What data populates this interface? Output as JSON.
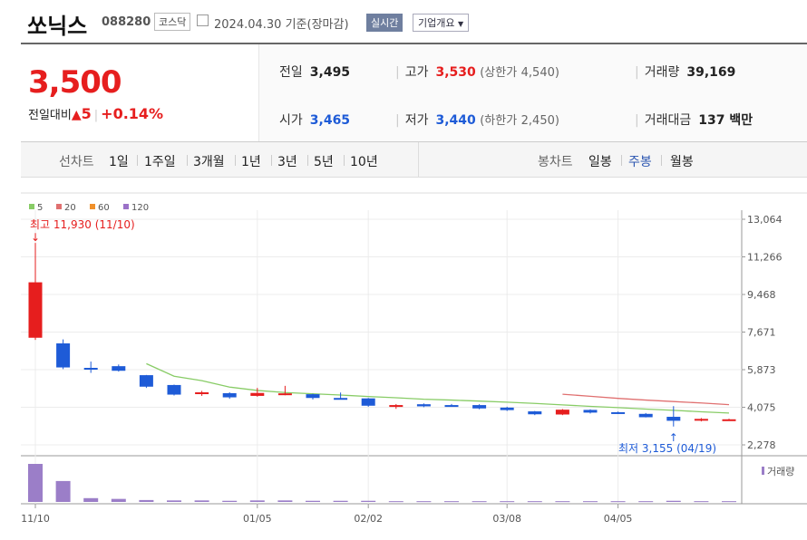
{
  "header": {
    "name": "쏘닉스",
    "code": "088280",
    "market": "코스닥",
    "date": "2024.04.30",
    "basis": "기준(장마감)",
    "live_label": "실시간",
    "info_label": "기업개요"
  },
  "quote": {
    "price": "3,500",
    "change_label": "전일대비",
    "change": "5",
    "change_pct": "+0.14%",
    "prev_close_label": "전일",
    "prev_close": "3,495",
    "high_label": "고가",
    "high": "3,530",
    "upper_limit_label": "(상한가",
    "upper_limit": "4,540)",
    "volume_label": "거래량",
    "volume": "39,169",
    "open_label": "시가",
    "open": "3,465",
    "low_label": "저가",
    "low": "3,440",
    "lower_limit_label": "(하한가",
    "lower_limit": "2,450)",
    "trade_value_label": "거래대금",
    "trade_value": "137 백만"
  },
  "period_bar": {
    "line_label": "선차트",
    "periods": [
      "1일",
      "1주일",
      "3개월",
      "1년",
      "3년",
      "5년",
      "10년"
    ],
    "candle_label": "봉차트",
    "candles": [
      "일봉",
      "주봉",
      "월봉"
    ],
    "active_candle": "주봉"
  },
  "colors": {
    "up": "#e61e1e",
    "down": "#1e5bd7",
    "ma5": "#88cc66",
    "ma20": "#e07070",
    "ma60": "#f0902a",
    "ma120": "#9b72c8",
    "volume": "#9b7ec8"
  },
  "chart_data": {
    "type": "candlestick",
    "interval": "weekly",
    "legend": [
      "5",
      "20",
      "60",
      "120"
    ],
    "yticks": [
      "13,064",
      "11,266",
      "9,468",
      "7,671",
      "5,873",
      "4,075",
      "2,278"
    ],
    "yticks_values": [
      13064,
      11266,
      9468,
      7671,
      5873,
      4075,
      2278
    ],
    "ylim": [
      2278,
      13064
    ],
    "xticks": [
      {
        "label": "11/10",
        "index": 0
      },
      {
        "label": "01/05",
        "index": 8
      },
      {
        "label": "02/02",
        "index": 12
      },
      {
        "label": "03/08",
        "index": 17
      },
      {
        "label": "04/05",
        "index": 21
      }
    ],
    "annotations": {
      "high": {
        "label": "최고 11,930 (11/10)",
        "index": 0,
        "value": 11930
      },
      "low": {
        "label": "최저 3,155 (04/19)",
        "index": 23,
        "value": 3155
      }
    },
    "volume_label": "거래량",
    "candles": [
      {
        "o": 7400,
        "h": 11930,
        "l": 7300,
        "c": 10050
      },
      {
        "o": 7130,
        "h": 7320,
        "l": 5900,
        "c": 5980
      },
      {
        "o": 5960,
        "h": 6260,
        "l": 5720,
        "c": 5920
      },
      {
        "o": 6040,
        "h": 6120,
        "l": 5780,
        "c": 5820
      },
      {
        "o": 5610,
        "h": 5620,
        "l": 5000,
        "c": 5060
      },
      {
        "o": 5140,
        "h": 5160,
        "l": 4640,
        "c": 4680
      },
      {
        "o": 4730,
        "h": 4860,
        "l": 4620,
        "c": 4790
      },
      {
        "o": 4750,
        "h": 4790,
        "l": 4480,
        "c": 4550
      },
      {
        "o": 4620,
        "h": 5000,
        "l": 4580,
        "c": 4760
      },
      {
        "o": 4720,
        "h": 5100,
        "l": 4650,
        "c": 4740
      },
      {
        "o": 4700,
        "h": 4720,
        "l": 4450,
        "c": 4520
      },
      {
        "o": 4520,
        "h": 4780,
        "l": 4450,
        "c": 4460
      },
      {
        "o": 4500,
        "h": 4520,
        "l": 4100,
        "c": 4150
      },
      {
        "o": 4100,
        "h": 4230,
        "l": 4000,
        "c": 4180
      },
      {
        "o": 4220,
        "h": 4260,
        "l": 4080,
        "c": 4120
      },
      {
        "o": 4180,
        "h": 4230,
        "l": 4110,
        "c": 4150
      },
      {
        "o": 4180,
        "h": 4220,
        "l": 3980,
        "c": 4020
      },
      {
        "o": 4060,
        "h": 4100,
        "l": 3900,
        "c": 3940
      },
      {
        "o": 3880,
        "h": 3900,
        "l": 3700,
        "c": 3740
      },
      {
        "o": 3730,
        "h": 3990,
        "l": 3700,
        "c": 3960
      },
      {
        "o": 3950,
        "h": 3980,
        "l": 3780,
        "c": 3820
      },
      {
        "o": 3840,
        "h": 3870,
        "l": 3750,
        "c": 3790
      },
      {
        "o": 3760,
        "h": 3800,
        "l": 3590,
        "c": 3600
      },
      {
        "o": 3620,
        "h": 4130,
        "l": 3155,
        "c": 3430
      },
      {
        "o": 3440,
        "h": 3560,
        "l": 3400,
        "c": 3520
      },
      {
        "o": 3465,
        "h": 3530,
        "l": 3440,
        "c": 3500
      }
    ],
    "ma5": [
      null,
      null,
      null,
      null,
      6160,
      5560,
      5350,
      5040,
      4880,
      4780,
      4720,
      4660,
      4590,
      4530,
      4460,
      4420,
      4370,
      4320,
      4260,
      4190,
      4120,
      4060,
      3990,
      3930,
      3860,
      3800
    ],
    "ma20": [
      null,
      null,
      null,
      null,
      null,
      null,
      null,
      null,
      null,
      null,
      null,
      null,
      null,
      null,
      null,
      null,
      null,
      null,
      null,
      4700,
      4600,
      4500,
      4420,
      4350,
      4280,
      4200
    ],
    "volume": [
      100,
      55,
      10,
      8,
      5,
      4,
      4,
      3,
      4,
      4,
      3,
      3,
      3,
      2,
      2,
      2,
      2,
      2,
      2,
      2,
      2,
      2,
      2,
      3,
      2,
      2
    ]
  }
}
